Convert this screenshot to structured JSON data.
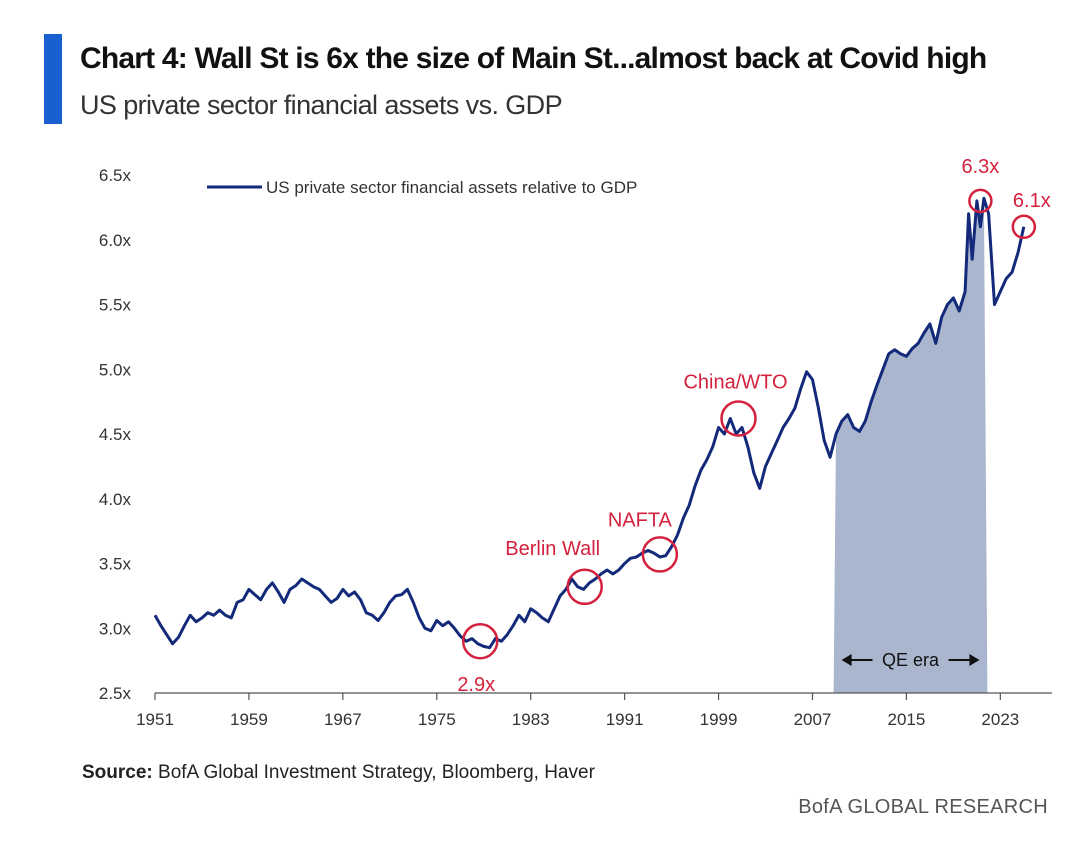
{
  "header": {
    "title": "Chart 4: Wall St is 6x the size of Main St...almost back at Covid high",
    "subtitle": "US private sector financial assets vs. GDP"
  },
  "footer": {
    "source_label": "Source:",
    "source_text": " BofA Global Investment Strategy, Bloomberg, Haver",
    "brand": "BofA GLOBAL RESEARCH"
  },
  "colors": {
    "accent": "#1a5fd0",
    "line": "#13297a",
    "annotation": "#d4213d",
    "shade": "#a9b6ce",
    "axis": "#555555"
  },
  "chart_data": {
    "type": "line",
    "title": "Chart 4: Wall St is 6x the size of Main St...almost back at Covid high",
    "subtitle": "US private sector financial assets vs. GDP",
    "xlabel": "",
    "ylabel": "",
    "xlim": [
      1951,
      2027.4
    ],
    "ylim": [
      2.5,
      6.5
    ],
    "grid": false,
    "legend_position": "top-left",
    "x_ticks": [
      1951,
      1959,
      1967,
      1975,
      1983,
      1991,
      1999,
      2007,
      2015,
      2023
    ],
    "x_tick_labels": [
      "1951",
      "1959",
      "1967",
      "1975",
      "1983",
      "1991",
      "1999",
      "2007",
      "2015",
      "2023"
    ],
    "y_ticks": [
      2.5,
      3.0,
      3.5,
      4.0,
      4.5,
      5.0,
      5.5,
      6.0,
      6.5
    ],
    "y_tick_labels": [
      "2.5x",
      "3.0x",
      "3.5x",
      "4.0x",
      "4.5x",
      "5.0x",
      "5.5x",
      "6.0x",
      "6.5x"
    ],
    "series": [
      {
        "name": "US private sector financial assets relative to GDP",
        "x": [
          1951.0,
          1951.5,
          1952.0,
          1952.5,
          1953.0,
          1953.5,
          1954.0,
          1954.5,
          1955.0,
          1955.5,
          1956.0,
          1956.5,
          1957.0,
          1957.5,
          1958.0,
          1958.5,
          1959.0,
          1959.5,
          1960.0,
          1960.5,
          1961.0,
          1961.5,
          1962.0,
          1962.5,
          1963.0,
          1963.5,
          1964.0,
          1964.5,
          1965.0,
          1965.5,
          1966.0,
          1966.5,
          1967.0,
          1967.5,
          1968.0,
          1968.5,
          1969.0,
          1969.5,
          1970.0,
          1970.5,
          1971.0,
          1971.5,
          1972.0,
          1972.5,
          1973.0,
          1973.5,
          1974.0,
          1974.5,
          1975.0,
          1975.5,
          1976.0,
          1976.5,
          1977.0,
          1977.5,
          1978.0,
          1978.5,
          1979.0,
          1979.5,
          1980.0,
          1980.5,
          1981.0,
          1981.5,
          1982.0,
          1982.5,
          1983.0,
          1983.5,
          1984.0,
          1984.5,
          1985.0,
          1985.5,
          1986.0,
          1986.5,
          1987.0,
          1987.5,
          1988.0,
          1988.5,
          1989.0,
          1989.5,
          1990.0,
          1990.5,
          1991.0,
          1991.5,
          1992.0,
          1992.5,
          1993.0,
          1993.5,
          1994.0,
          1994.5,
          1995.0,
          1995.5,
          1996.0,
          1996.5,
          1997.0,
          1997.5,
          1998.0,
          1998.5,
          1999.0,
          1999.5,
          2000.0,
          2000.5,
          2001.0,
          2001.5,
          2002.0,
          2002.5,
          2003.0,
          2003.5,
          2004.0,
          2004.5,
          2005.0,
          2005.5,
          2006.0,
          2006.5,
          2007.0,
          2007.5,
          2008.0,
          2008.5,
          2009.0,
          2009.5,
          2010.0,
          2010.5,
          2011.0,
          2011.5,
          2012.0,
          2012.5,
          2013.0,
          2013.5,
          2014.0,
          2014.5,
          2015.0,
          2015.5,
          2016.0,
          2016.5,
          2017.0,
          2017.5,
          2018.0,
          2018.5,
          2019.0,
          2019.5,
          2020.0,
          2020.3,
          2020.6,
          2021.0,
          2021.3,
          2021.6,
          2022.0,
          2022.5,
          2023.0,
          2023.5,
          2024.0,
          2024.5,
          2025.0
        ],
        "y": [
          3.1,
          3.02,
          2.95,
          2.88,
          2.93,
          3.02,
          3.1,
          3.05,
          3.08,
          3.12,
          3.1,
          3.14,
          3.1,
          3.08,
          3.2,
          3.22,
          3.3,
          3.26,
          3.22,
          3.3,
          3.35,
          3.28,
          3.2,
          3.3,
          3.33,
          3.38,
          3.35,
          3.32,
          3.3,
          3.25,
          3.2,
          3.23,
          3.3,
          3.25,
          3.28,
          3.22,
          3.12,
          3.1,
          3.06,
          3.12,
          3.2,
          3.25,
          3.26,
          3.3,
          3.2,
          3.08,
          3.0,
          2.98,
          3.06,
          3.02,
          3.05,
          3.0,
          2.94,
          2.9,
          2.92,
          2.88,
          2.86,
          2.85,
          2.92,
          2.9,
          2.95,
          3.02,
          3.1,
          3.05,
          3.15,
          3.12,
          3.08,
          3.05,
          3.15,
          3.25,
          3.3,
          3.38,
          3.32,
          3.3,
          3.35,
          3.38,
          3.42,
          3.45,
          3.42,
          3.45,
          3.5,
          3.54,
          3.55,
          3.58,
          3.6,
          3.58,
          3.55,
          3.56,
          3.63,
          3.72,
          3.85,
          3.95,
          4.1,
          4.22,
          4.3,
          4.4,
          4.55,
          4.5,
          4.62,
          4.5,
          4.55,
          4.4,
          4.2,
          4.08,
          4.25,
          4.35,
          4.45,
          4.55,
          4.62,
          4.7,
          4.85,
          4.98,
          4.92,
          4.7,
          4.45,
          4.32,
          4.5,
          4.6,
          4.65,
          4.55,
          4.52,
          4.6,
          4.75,
          4.88,
          5.0,
          5.12,
          5.15,
          5.12,
          5.1,
          5.16,
          5.2,
          5.28,
          5.35,
          5.2,
          5.4,
          5.5,
          5.55,
          5.45,
          5.6,
          6.2,
          5.85,
          6.3,
          6.1,
          6.32,
          6.2,
          5.5,
          5.6,
          5.7,
          5.75,
          5.9,
          6.1
        ]
      }
    ],
    "annotations": [
      {
        "label": "2.9x",
        "x": 1978.7,
        "y": 2.9
      },
      {
        "label": "Berlin Wall",
        "x": 1987.6,
        "y": 3.32
      },
      {
        "label": "NAFTA",
        "x": 1994.0,
        "y": 3.57
      },
      {
        "label": "China/WTO",
        "x": 2000.7,
        "y": 4.62
      },
      {
        "label": "6.3x",
        "x": 2021.3,
        "y": 6.3
      },
      {
        "label": "6.1x",
        "x": 2025.0,
        "y": 6.1
      }
    ],
    "shaded_region": {
      "label": "QE era",
      "x_start": 2008.8,
      "x_end": 2021.9
    }
  }
}
